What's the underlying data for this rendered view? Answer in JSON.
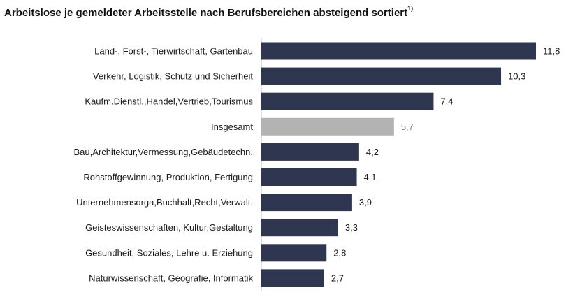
{
  "chart_data": {
    "type": "bar",
    "orientation": "horizontal",
    "title": "Arbeitslose je gemeldeter Arbeitsstelle nach Berufsbereichen absteigend sortiert",
    "title_footnote": "1)",
    "categories": [
      "Land-, Forst-, Tierwirtschaft, Gartenbau",
      "Verkehr, Logistik, Schutz und Sicherheit",
      "Kaufm.Dienstl.,Handel,Vertrieb,Tourismus",
      "Insgesamt",
      "Bau,Architektur,Vermessung,Gebäudetechn.",
      "Rohstoffgewinnung, Produktion, Fertigung",
      "Unternehmensorga,Buchhalt,Recht,Verwalt.",
      "Geisteswissenschaften, Kultur,Gestaltung",
      "Gesundheit, Soziales, Lehre u. Erziehung",
      "Naturwissenschaft, Geografie, Informatik"
    ],
    "values": [
      11.8,
      10.3,
      7.4,
      5.7,
      4.2,
      4.1,
      3.9,
      3.3,
      2.8,
      2.7
    ],
    "value_labels": [
      "11,8",
      "10,3",
      "7,4",
      "5,7",
      "4,2",
      "4,1",
      "3,9",
      "3,3",
      "2,8",
      "2,7"
    ],
    "highlight_category": "Insgesamt",
    "xlim": [
      0,
      11.8
    ],
    "grid": false,
    "legend": "none",
    "colors": {
      "bar": "#2e3650",
      "highlight_bar": "#b3b3b3",
      "label": "#1a1a1a",
      "highlight_value_label": "#7f7f7f",
      "axis_line": "#bfbfbf"
    }
  }
}
